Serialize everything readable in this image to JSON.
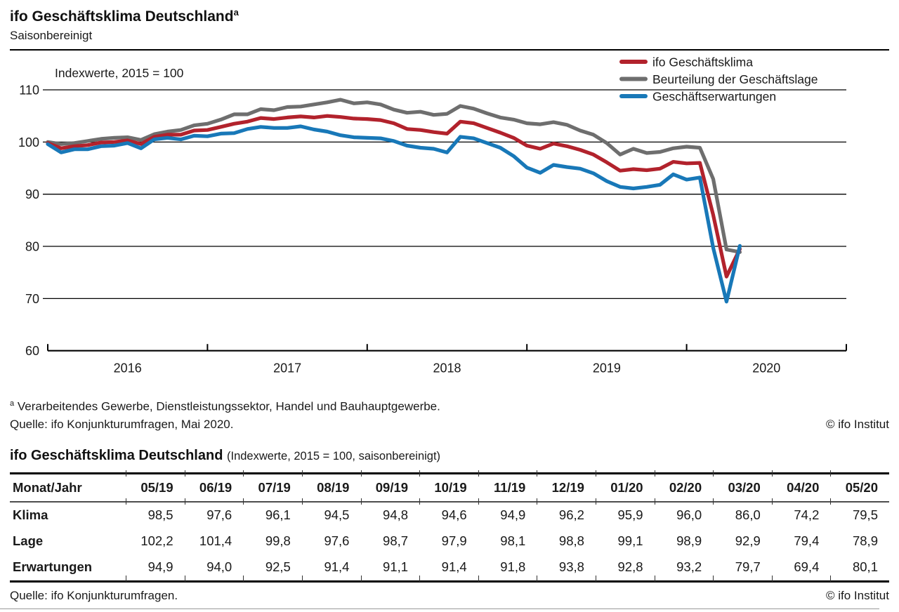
{
  "header": {
    "title": "ifo Geschäftsklima Deutschland",
    "title_superscript": "a",
    "subtitle": "Saisonbereinigt"
  },
  "chart": {
    "axis_note": "Indexwerte, 2015 = 100",
    "legend": [
      {
        "label": "ifo Geschäftsklima",
        "color": "#b2222c"
      },
      {
        "label": "Beurteilung der Geschäftslage",
        "color": "#6e6e6e"
      },
      {
        "label": "Geschäftserwartungen",
        "color": "#1878b8"
      }
    ]
  },
  "chart_data": {
    "type": "line",
    "title": "ifo Geschäftsklima Deutschland (saisonbereinigt)",
    "ylabel": "Indexwerte, 2015 = 100",
    "ylim": [
      60,
      110
    ],
    "yticks": [
      110,
      100,
      90,
      80,
      70,
      60
    ],
    "year_labels": [
      "2016",
      "2017",
      "2018",
      "2019",
      "2020"
    ],
    "x_monthly_start": "2016-01",
    "x_monthly_end": "2020-05",
    "grid": "horizontal",
    "legend_position": "top-right",
    "series": [
      {
        "name": "ifo Geschäftsklima",
        "color": "#b2222c",
        "z": 2,
        "values": [
          99.8,
          98.8,
          99.2,
          99.4,
          99.9,
          100.0,
          100.3,
          99.6,
          101.0,
          101.4,
          101.4,
          102.2,
          102.3,
          102.9,
          103.5,
          103.9,
          104.6,
          104.4,
          104.7,
          104.9,
          104.7,
          105.0,
          104.8,
          104.5,
          104.4,
          104.2,
          103.6,
          102.5,
          102.3,
          101.9,
          101.6,
          103.9,
          103.6,
          102.7,
          101.8,
          100.8,
          99.3,
          98.7,
          99.7,
          99.2,
          98.5,
          97.6,
          96.1,
          94.5,
          94.8,
          94.6,
          94.9,
          96.2,
          95.9,
          96.0,
          86.0,
          74.2,
          79.5
        ]
      },
      {
        "name": "Beurteilung der Geschäftslage",
        "color": "#6e6e6e",
        "z": 1,
        "values": [
          100.0,
          99.6,
          99.8,
          100.2,
          100.6,
          100.8,
          100.9,
          100.4,
          101.5,
          102.0,
          102.3,
          103.2,
          103.5,
          104.3,
          105.3,
          105.3,
          106.3,
          106.1,
          106.7,
          106.8,
          107.2,
          107.6,
          108.1,
          107.4,
          107.6,
          107.2,
          106.2,
          105.6,
          105.8,
          105.2,
          105.4,
          106.9,
          106.4,
          105.5,
          104.7,
          104.3,
          103.6,
          103.4,
          103.8,
          103.3,
          102.2,
          101.4,
          99.8,
          97.6,
          98.7,
          97.9,
          98.1,
          98.8,
          99.1,
          98.9,
          92.9,
          79.4,
          78.9
        ]
      },
      {
        "name": "Geschäftserwartungen",
        "color": "#1878b8",
        "z": 3,
        "values": [
          99.6,
          98.0,
          98.6,
          98.6,
          99.2,
          99.3,
          99.8,
          98.8,
          100.5,
          100.8,
          100.5,
          101.2,
          101.1,
          101.6,
          101.7,
          102.5,
          102.9,
          102.7,
          102.7,
          103.0,
          102.4,
          102.0,
          101.3,
          100.9,
          100.8,
          100.7,
          100.2,
          99.3,
          98.9,
          98.7,
          98.0,
          101.0,
          100.7,
          99.8,
          98.9,
          97.3,
          95.1,
          94.1,
          95.6,
          95.2,
          94.9,
          94.0,
          92.5,
          91.4,
          91.1,
          91.4,
          91.8,
          93.8,
          92.8,
          93.2,
          79.7,
          69.4,
          80.1
        ]
      }
    ]
  },
  "chart_footer": {
    "note_marker": "a",
    "note": "Verarbeitendes Gewerbe, Dienstleistungssektor, Handel und Bauhauptgewerbe.",
    "source": "Quelle: ifo Konjunkturumfragen, Mai 2020.",
    "copyright": "© ifo Institut"
  },
  "table": {
    "title": "ifo Geschäftsklima Deutschland",
    "title_note": "(Indexwerte, 2015 = 100, saisonbereinigt)",
    "header": [
      "Monat/Jahr",
      "05/19",
      "06/19",
      "07/19",
      "08/19",
      "09/19",
      "10/19",
      "11/19",
      "12/19",
      "01/20",
      "02/20",
      "03/20",
      "04/20",
      "05/20"
    ],
    "rows": [
      {
        "label": "Klima",
        "values": [
          "98,5",
          "97,6",
          "96,1",
          "94,5",
          "94,8",
          "94,6",
          "94,9",
          "96,2",
          "95,9",
          "96,0",
          "86,0",
          "74,2",
          "79,5"
        ]
      },
      {
        "label": "Lage",
        "values": [
          "102,2",
          "101,4",
          "99,8",
          "97,6",
          "98,7",
          "97,9",
          "98,1",
          "98,8",
          "99,1",
          "98,9",
          "92,9",
          "79,4",
          "78,9"
        ]
      },
      {
        "label": "Erwartungen",
        "values": [
          "94,9",
          "94,0",
          "92,5",
          "91,4",
          "91,1",
          "91,4",
          "91,8",
          "93,8",
          "92,8",
          "93,2",
          "79,7",
          "69,4",
          "80,1"
        ]
      }
    ]
  },
  "table_footer": {
    "source": "Quelle: ifo Konjunkturumfragen.",
    "copyright": "© ifo Institut"
  }
}
